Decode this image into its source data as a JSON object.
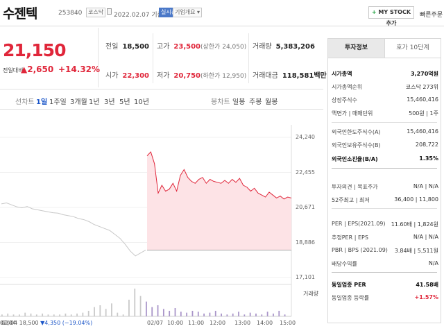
{
  "header": {
    "name": "수젠텍",
    "code": "253840",
    "market": "코스닥",
    "date": "2022.02.07 기준(장마감)",
    "live_badge": "실시간",
    "info_badge": "기업개요 ▾",
    "mystock_label": "MY STOCK 추가",
    "quick_order": "빠른주문"
  },
  "price": {
    "current": "21,150",
    "change_label": "전일대비",
    "change": "▲2,650",
    "change_pct": "+14.32%"
  },
  "stats": {
    "prev_close_label": "전일",
    "prev_close": "18,500",
    "high_label": "고가",
    "high": "23,500",
    "upper_limit": "(상한가 24,050)",
    "volume_label": "거래량",
    "volume": "5,383,206",
    "open_label": "시가",
    "open": "22,300",
    "low_label": "저가",
    "low": "20,750",
    "lower_limit": "(하한가 12,950)",
    "amount_label": "거래대금",
    "amount": "118,581백만"
  },
  "tabs": {
    "candle_type": "선차트",
    "periods": [
      "1일",
      "1주일",
      "3개월",
      "1년",
      "3년",
      "5년",
      "10년"
    ],
    "active": "1일",
    "candle_label": "봉차트",
    "candle_periods": [
      "일봉",
      "주봉",
      "월봉"
    ]
  },
  "chart_data": {
    "type": "line",
    "title": "",
    "y_ticks": [
      "24,240",
      "22,455",
      "20,671",
      "18,886",
      "17,101"
    ],
    "ylim": [
      17101,
      24240
    ],
    "x_ticks": [
      "02/04",
      "02/07",
      "10:00",
      "11:00",
      "12:00",
      "13:00",
      "14:00",
      "15:00"
    ],
    "prev_close": 18500,
    "series": [
      {
        "name": "02/04",
        "values": [
          20850,
          20900,
          20800,
          20700,
          20650,
          20720,
          20600,
          20550,
          20500,
          20450,
          20400,
          20380,
          20300,
          20250,
          20200,
          20100,
          20050,
          19950,
          19800,
          19700,
          19600,
          19500,
          19300,
          19100,
          18800,
          18450,
          18200,
          18350,
          18500
        ]
      },
      {
        "name": "02/07",
        "values": [
          23300,
          23500,
          22900,
          21400,
          21800,
          21500,
          21600,
          21900,
          21500,
          22300,
          22600,
          22200,
          22000,
          21900,
          22100,
          22200,
          21900,
          22100,
          22000,
          21950,
          21900,
          22050,
          21900,
          22100,
          21950,
          22150,
          21800,
          21700,
          21500,
          21650,
          21400,
          21300,
          21200,
          21450,
          21300,
          21150,
          21250,
          21100,
          21200,
          21150
        ]
      }
    ],
    "volume_label": "거래량",
    "volume": [
      2,
      3,
      2,
      2,
      4,
      3,
      2,
      3,
      2,
      2,
      2,
      3,
      2,
      3,
      4,
      6,
      10,
      12,
      8,
      14,
      4,
      2,
      18,
      30,
      22,
      16,
      10,
      12,
      8,
      6,
      9,
      5,
      4,
      6,
      5,
      3,
      4,
      6,
      3,
      2,
      3,
      5,
      2,
      4,
      3,
      2,
      5,
      3,
      6,
      2
    ],
    "footer": {
      "date": "02/04",
      "close": "18,500",
      "change": "▼4,350",
      "pct": "(−19.04%)"
    }
  },
  "side": {
    "tab_on": "투자정보",
    "tab_off": "호가 10단계",
    "rows": [
      {
        "label": "시가총액",
        "value": "3,270억원",
        "bold": true
      },
      {
        "label": "시가총액순위",
        "value": "코스닥 273위"
      },
      {
        "label": "상장주식수",
        "value": "15,460,416"
      },
      {
        "label": "액면가 | 매매단위",
        "value": "500원 | 1주"
      },
      {
        "label": "외국인한도주식수(A)",
        "value": "15,460,416"
      },
      {
        "label": "외국인보유주식수(B)",
        "value": "208,722"
      },
      {
        "label": "외국인소진율(B/A)",
        "value": "1.35%",
        "bold": true
      },
      {
        "label": "투자의견 | 목표주가",
        "value": "N/A | N/A"
      },
      {
        "label": "52주최고 | 최저",
        "value": "36,400 | 11,800"
      },
      {
        "label": "PER | EPS(2021.09)",
        "value": "11.60배 | 1,824원"
      },
      {
        "label": "추정PER | EPS",
        "value": "N/A | N/A"
      },
      {
        "label": "PBR | BPS (2021.09)",
        "value": "3.84배 | 5,511원"
      },
      {
        "label": "배당수익률",
        "value": "N/A"
      },
      {
        "label": "동일업종 PER",
        "value": "41.58배",
        "bold": true
      },
      {
        "label": "동일업종 등락률",
        "value": "+1.57%",
        "red": true
      }
    ]
  }
}
